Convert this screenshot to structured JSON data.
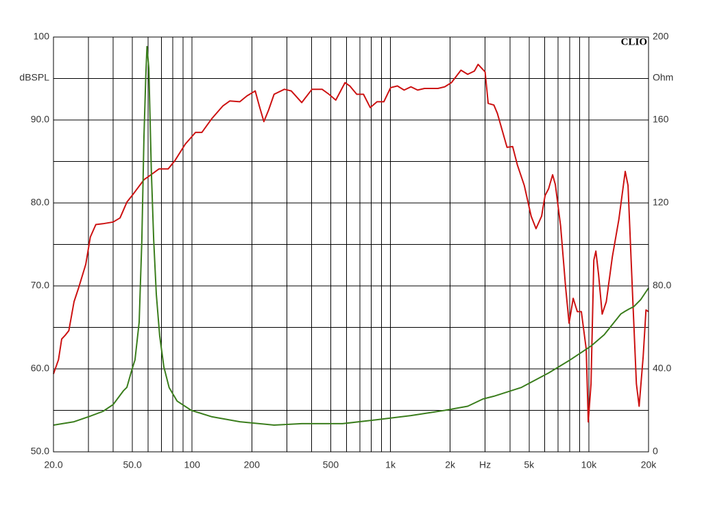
{
  "chart_data": {
    "type": "line",
    "brand": "CLIO",
    "ylabel": "dBSPL",
    "y2label": "Ohm",
    "xscale": "log",
    "grid": true,
    "xlim": [
      20,
      20000
    ],
    "ylim": [
      50,
      100
    ],
    "y2lim": [
      0,
      200
    ],
    "xticks": [
      {
        "value": 20,
        "label": "20.0"
      },
      {
        "value": 50,
        "label": "50.0"
      },
      100,
      200,
      500,
      {
        "value": 1000,
        "label": "1k"
      },
      {
        "value": 2000,
        "label": "2k"
      },
      {
        "value": 3000,
        "label": "Hz"
      },
      {
        "value": 5000,
        "label": "5k"
      },
      {
        "value": 10000,
        "label": "10k"
      },
      {
        "value": 20000,
        "label": "20k"
      }
    ],
    "xminor_ticks": [
      30,
      40,
      60,
      70,
      80,
      90,
      300,
      400,
      600,
      700,
      800,
      900,
      4000,
      6000,
      7000,
      8000,
      9000
    ],
    "yticks": [
      {
        "value": 50,
        "label": "50.0"
      },
      {
        "value": 60,
        "label": "60.0"
      },
      {
        "value": 70,
        "label": "70.0"
      },
      {
        "value": 80,
        "label": "80.0"
      },
      {
        "value": 90,
        "label": "90.0"
      },
      100
    ],
    "yminor_ticks": [
      55,
      65,
      75,
      85,
      95
    ],
    "y2ticks": [
      0,
      {
        "value": 40,
        "label": "40.0"
      },
      {
        "value": 80,
        "label": "80.0"
      },
      120,
      160,
      200
    ],
    "series": [
      {
        "color": "#cc1111",
        "x": [
          20,
          21.2,
          22,
          23,
          23.9,
          25.4,
          26.8,
          29.1,
          30.7,
          32.7,
          35.5,
          40,
          43.3,
          46.9,
          50.6,
          57.2,
          62,
          68,
          75.7,
          81.9,
          92.4,
          104,
          112,
          126,
          143,
          155,
          174,
          189,
          208,
          218,
          230,
          243,
          259,
          292,
          316,
          357,
          402,
          452,
          490,
          530,
          590,
          624,
          676,
          731,
          791,
          856,
          926,
          1002,
          1084,
          1172,
          1268,
          1371,
          1483,
          1735,
          1877,
          2030,
          2266,
          2451,
          2650,
          2765,
          3000,
          3110,
          3320,
          3460,
          3870,
          4130,
          4360,
          4730,
          5120,
          5420,
          5780,
          6020,
          6270,
          6570,
          6780,
          7210,
          7640,
          7950,
          8340,
          8750,
          9170,
          9700,
          9940,
          10260,
          10600,
          10850,
          11200,
          11680,
          12250,
          13140,
          14170,
          15260,
          15770,
          16560,
          17370,
          17930,
          18800,
          19420,
          20000
        ],
        "values": [
          59.4,
          61.1,
          63.6,
          64.1,
          64.6,
          68.1,
          69.8,
          72.6,
          75.9,
          77.4,
          77.5,
          77.7,
          78.2,
          80.1,
          81.1,
          82.8,
          83.4,
          84.1,
          84.1,
          85.1,
          87.1,
          88.5,
          88.5,
          90.2,
          91.7,
          92.3,
          92.2,
          92.9,
          93.5,
          91.7,
          89.8,
          91.2,
          93.1,
          93.7,
          93.5,
          92.1,
          93.7,
          93.7,
          93.1,
          92.4,
          94.5,
          94.1,
          93.1,
          93.1,
          91.5,
          92.2,
          92.2,
          93.9,
          94.1,
          93.6,
          94.0,
          93.6,
          93.8,
          93.8,
          94.0,
          94.5,
          96.0,
          95.5,
          95.9,
          96.7,
          95.8,
          92.0,
          91.8,
          90.8,
          86.7,
          86.8,
          84.6,
          82.1,
          78.4,
          76.9,
          78.4,
          80.9,
          81.7,
          83.4,
          82.2,
          77.2,
          69.8,
          65.5,
          68.5,
          66.9,
          66.9,
          62.4,
          53.6,
          58.2,
          73.1,
          74.2,
          71.4,
          66.6,
          68.1,
          73.5,
          78.0,
          83.8,
          82.1,
          69.8,
          58.2,
          55.5,
          61.5,
          67.1,
          66.9
        ]
      },
      {
        "color": "#3a7d1c",
        "axis": "y2",
        "x": [
          20,
          25.4,
          30,
          35.5,
          40,
          45,
          46.9,
          49.6,
          51.5,
          54.1,
          55.8,
          57.2,
          58.4,
          59.2,
          60.5,
          62.3,
          64,
          66,
          68.6,
          72,
          76.6,
          84,
          99,
          126,
          174,
          259,
          357,
          573,
          856,
          1268,
          1877,
          2451,
          2930,
          3320,
          4560,
          6270,
          7950,
          10260,
          11960,
          14510,
          15260,
          15970,
          16840,
          18260,
          20000
        ],
        "values": [
          12.9,
          14.5,
          16.9,
          19.5,
          22.8,
          29.4,
          31.1,
          39.3,
          44.3,
          62.5,
          102,
          152,
          181.5,
          195.4,
          185,
          135,
          102,
          76,
          56,
          41,
          31,
          24.5,
          20,
          16.9,
          14.5,
          12.9,
          13.6,
          13.6,
          15.5,
          17.5,
          20,
          22,
          25.5,
          26.8,
          31,
          38,
          44,
          51,
          56.5,
          66.5,
          67.8,
          68.9,
          70,
          73.4,
          79
        ]
      }
    ]
  }
}
